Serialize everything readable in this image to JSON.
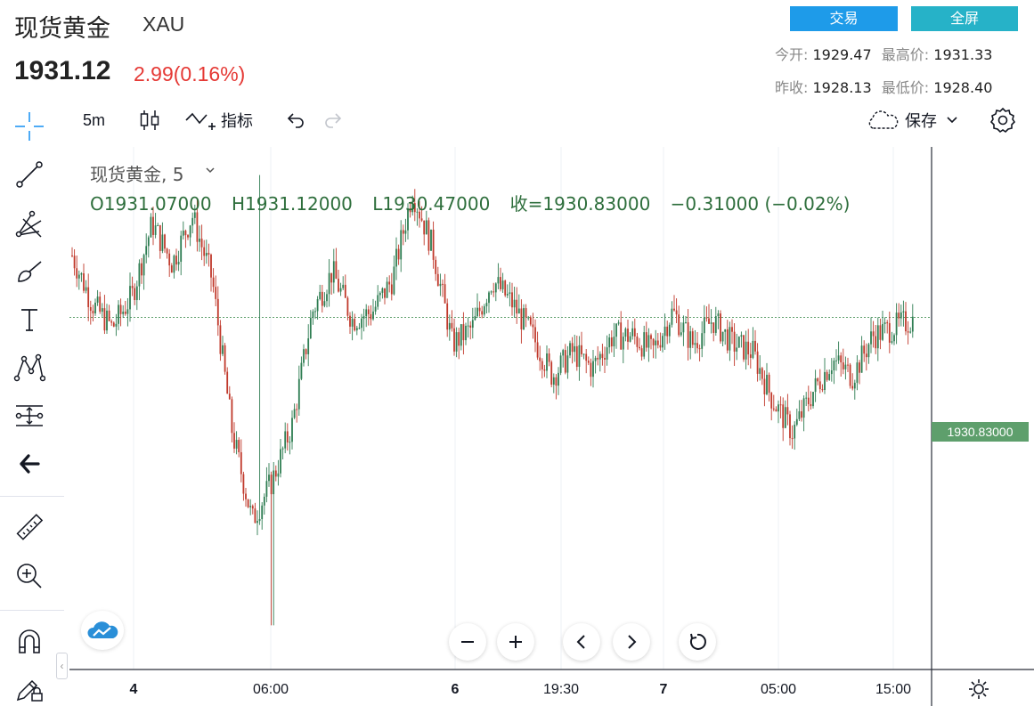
{
  "header": {
    "title": "现货黄金",
    "symbol": "XAU",
    "price": "1931.12",
    "change": "2.99(0.16%)",
    "trade_button": "交易",
    "fullscreen_button": "全屏",
    "stats": {
      "open_label": "今开:",
      "open": "1929.47",
      "high_label": "最高价:",
      "high": "1931.33",
      "prev_close_label": "昨收:",
      "prev_close": "1928.13",
      "low_label": "最低价:",
      "low": "1928.40"
    }
  },
  "toolbar": {
    "interval": "5m",
    "indicators_label": "指标",
    "save_label": "保存"
  },
  "legend": {
    "title": "现货黄金, 5",
    "open": "O1931.07000",
    "high": "H1931.12000",
    "low": "L1930.47000",
    "close": "收=1930.83000",
    "change": "−0.31000 (−0.02%)"
  },
  "colors": {
    "up": "#2e7d52",
    "down": "#c0392b",
    "trade_button": "#1e9be9",
    "fullscreen_button": "#26b2c8",
    "price_line": "#5e9f6c"
  },
  "chart_data": {
    "type": "candlestick",
    "interval": "5m",
    "current_price": 1930.83,
    "price_label": "1930.83000",
    "x_tick_labels": [
      {
        "label": "4",
        "bold": true
      },
      {
        "label": "06:00",
        "bold": false
      },
      {
        "label": "6",
        "bold": true
      },
      {
        "label": "19:30",
        "bold": false
      },
      {
        "label": "7",
        "bold": true
      },
      {
        "label": "05:00",
        "bold": false
      },
      {
        "label": "15:00",
        "bold": false
      }
    ],
    "close_path": [
      1931.6,
      1931.0,
      1930.7,
      1931.1,
      1932.0,
      1931.5,
      1932.1,
      1931.3,
      1929.4,
      1928.3,
      1928.8,
      1929.5,
      1930.9,
      1931.4,
      1930.8,
      1930.9,
      1931.3,
      1932.4,
      1931.7,
      1930.5,
      1930.7,
      1931.3,
      1931.0,
      1930.6,
      1930.1,
      1930.4,
      1930.2,
      1930.6,
      1930.6,
      1930.4,
      1930.9,
      1930.5,
      1930.8,
      1930.5,
      1930.4,
      1929.8,
      1929.4,
      1929.9,
      1930.3,
      1930.1,
      1930.6,
      1930.7,
      1930.8
    ],
    "grid": true
  }
}
